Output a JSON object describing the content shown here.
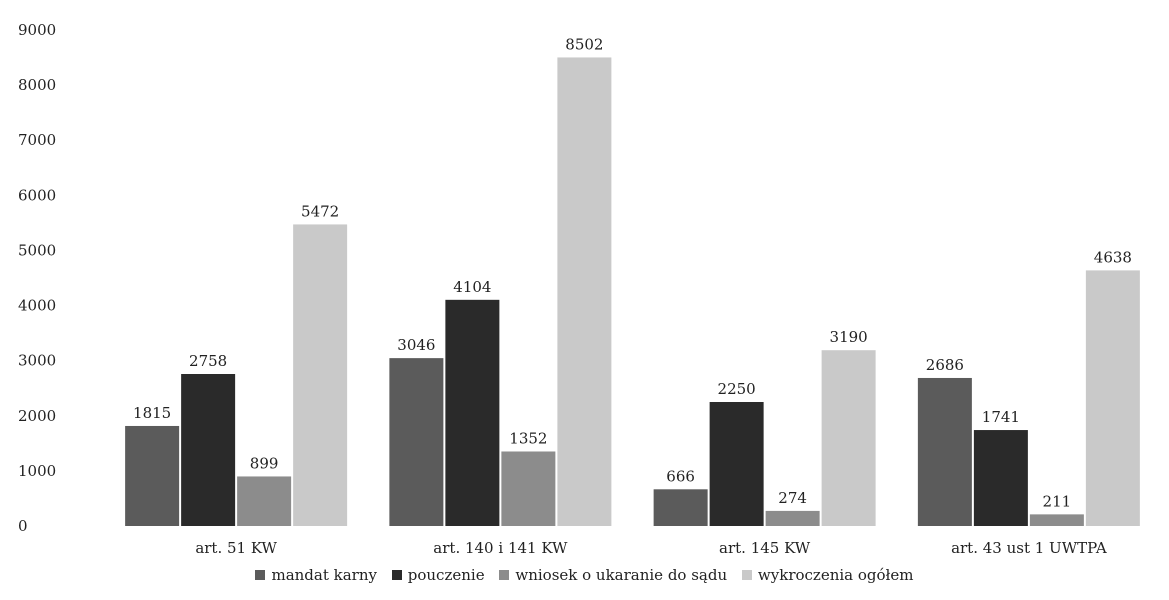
{
  "chart_data": {
    "type": "bar",
    "categories": [
      "art. 51 KW",
      "art. 140 i 141 KW",
      "art. 145 KW",
      "art. 43 ust 1 UWTPA"
    ],
    "series": [
      {
        "name": "mandat karny",
        "values": [
          1815,
          3046,
          666,
          2686
        ],
        "color": "#5b5b5b"
      },
      {
        "name": "pouczenie",
        "values": [
          2758,
          4104,
          2250,
          1741
        ],
        "color": "#2a2a2a"
      },
      {
        "name": "wniosek o ukaranie do sądu",
        "values": [
          899,
          1352,
          274,
          211
        ],
        "color": "#8c8c8c"
      },
      {
        "name": "wykroczenia ogółem",
        "values": [
          5472,
          8502,
          3190,
          4638
        ],
        "color": "#c9c9c9"
      }
    ],
    "yticks": [
      "0",
      "1000",
      "2000",
      "3000",
      "4000",
      "5000",
      "6000",
      "7000",
      "8000",
      "9000"
    ],
    "ylim": [
      0,
      9000
    ],
    "grid": false,
    "legend": "bottom"
  }
}
